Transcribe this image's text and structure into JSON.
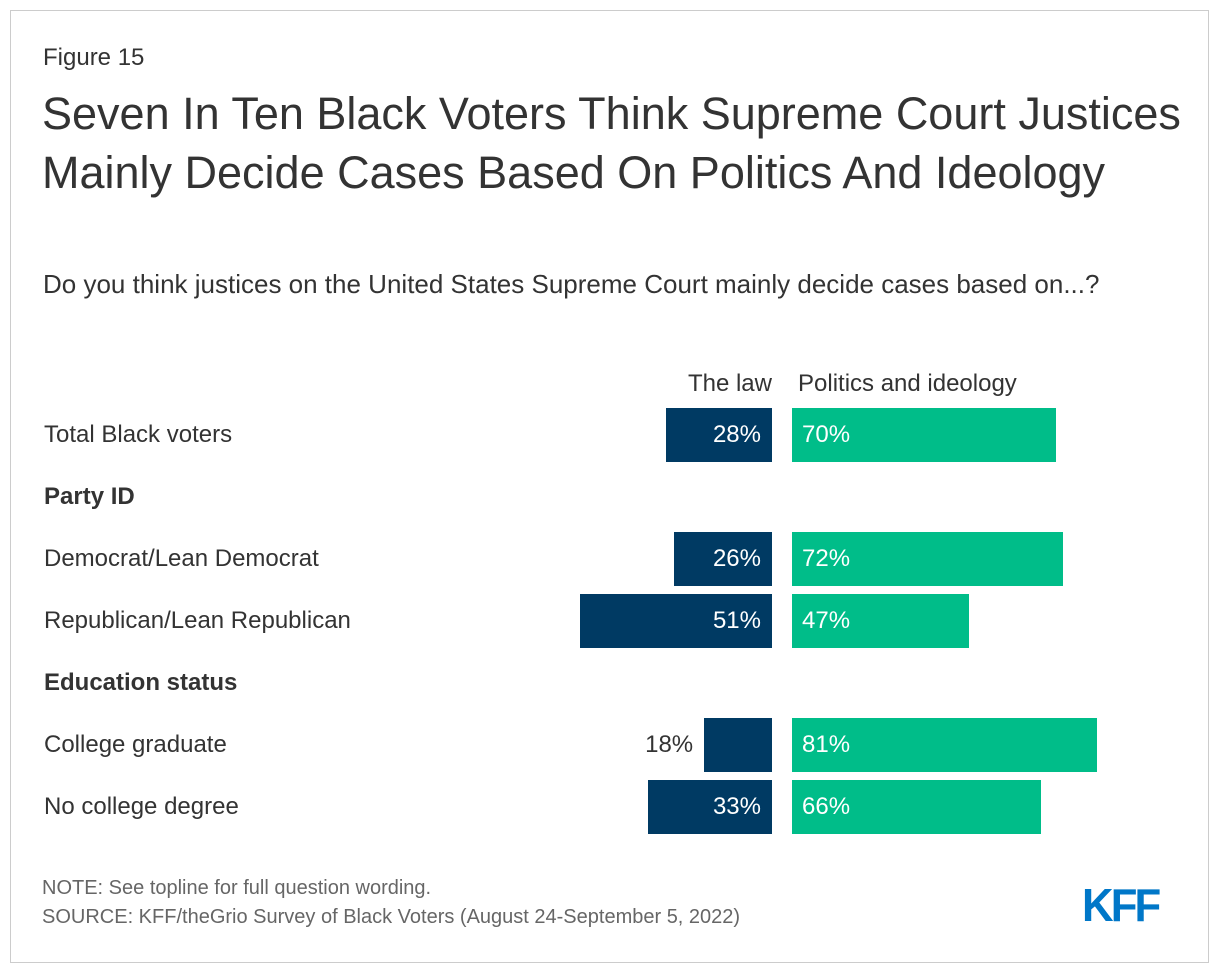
{
  "figure_label": "Figure 15",
  "title": "Seven In Ten Black Voters Think Supreme Court Justices Mainly Decide Cases Based On Politics And Ideology",
  "subtitle": "Do you think justices on the United States Supreme Court mainly decide cases based on...?",
  "chart_data": {
    "type": "bar",
    "orientation": "horizontal-diverging",
    "series": [
      {
        "name": "The law",
        "color": "#003a63"
      },
      {
        "name": "Politics and ideology",
        "color": "#00bd89"
      }
    ],
    "rows": [
      {
        "kind": "item",
        "label": "Total Black voters",
        "values": [
          28,
          70
        ]
      },
      {
        "kind": "group",
        "label": "Party ID"
      },
      {
        "kind": "item",
        "label": "Democrat/Lean Democrat",
        "values": [
          26,
          72
        ]
      },
      {
        "kind": "item",
        "label": "Republican/Lean Republican",
        "values": [
          51,
          47
        ]
      },
      {
        "kind": "group",
        "label": "Education status"
      },
      {
        "kind": "item",
        "label": "College graduate",
        "values": [
          18,
          81
        ]
      },
      {
        "kind": "item",
        "label": "No college degree",
        "values": [
          33,
          66
        ]
      }
    ],
    "unit": "%"
  },
  "note": "NOTE: See topline for full question wording.",
  "source": "SOURCE: KFF/theGrio Survey of Black Voters (August 24-September 5, 2022)",
  "logo": "KFF"
}
